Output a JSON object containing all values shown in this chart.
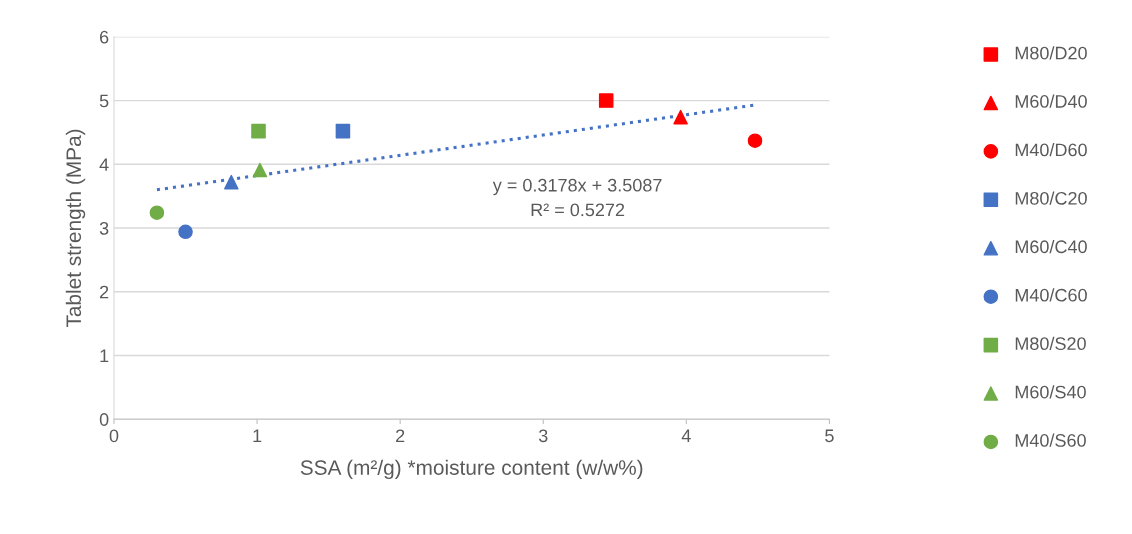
{
  "chart_data": {
    "type": "scatter",
    "xlabel": "SSA (m²/g) *moisture content (w/w%)",
    "ylabel": "Tablet strength (MPa)",
    "xlim": [
      0,
      5
    ],
    "xticks": [
      0,
      1,
      2,
      3,
      4,
      5
    ],
    "ylim": [
      0,
      6
    ],
    "yticks": [
      0,
      1,
      2,
      3,
      4,
      5,
      6
    ],
    "grid": "y",
    "legend": "right",
    "series": [
      {
        "name": "M80/D20",
        "color": "#ff0000",
        "marker": "square",
        "x": [
          3.44
        ],
        "values": [
          5.0
        ]
      },
      {
        "name": "M60/D40",
        "color": "#ff0000",
        "marker": "triangle",
        "x": [
          3.96
        ],
        "values": [
          4.74
        ]
      },
      {
        "name": "M40/D60",
        "color": "#ff0000",
        "marker": "circle",
        "x": [
          4.48
        ],
        "values": [
          4.37
        ]
      },
      {
        "name": "M80/C20",
        "color": "#4472c4",
        "marker": "square",
        "x": [
          1.6
        ],
        "values": [
          4.52
        ]
      },
      {
        "name": "M60/C40",
        "color": "#4472c4",
        "marker": "triangle",
        "x": [
          0.82
        ],
        "values": [
          3.72
        ]
      },
      {
        "name": "M40/C60",
        "color": "#4472c4",
        "marker": "circle",
        "x": [
          0.5
        ],
        "values": [
          2.94
        ]
      },
      {
        "name": "M80/S20",
        "color": "#70ad47",
        "marker": "square",
        "x": [
          1.01
        ],
        "values": [
          4.52
        ]
      },
      {
        "name": "M60/S40",
        "color": "#70ad47",
        "marker": "triangle",
        "x": [
          1.02
        ],
        "values": [
          3.91
        ]
      },
      {
        "name": "M40/S60",
        "color": "#70ad47",
        "marker": "circle",
        "x": [
          0.3
        ],
        "values": [
          3.24
        ]
      },
      {
        "type": "line",
        "color": "#4472c4",
        "marker": "none",
        "line_style": "dotted",
        "x": [
          0.3,
          4.48
        ],
        "values": [
          3.6,
          4.93
        ]
      }
    ],
    "annotations": [
      "y = 0.3178x + 3.5087\nR² = 0.5272"
    ]
  }
}
